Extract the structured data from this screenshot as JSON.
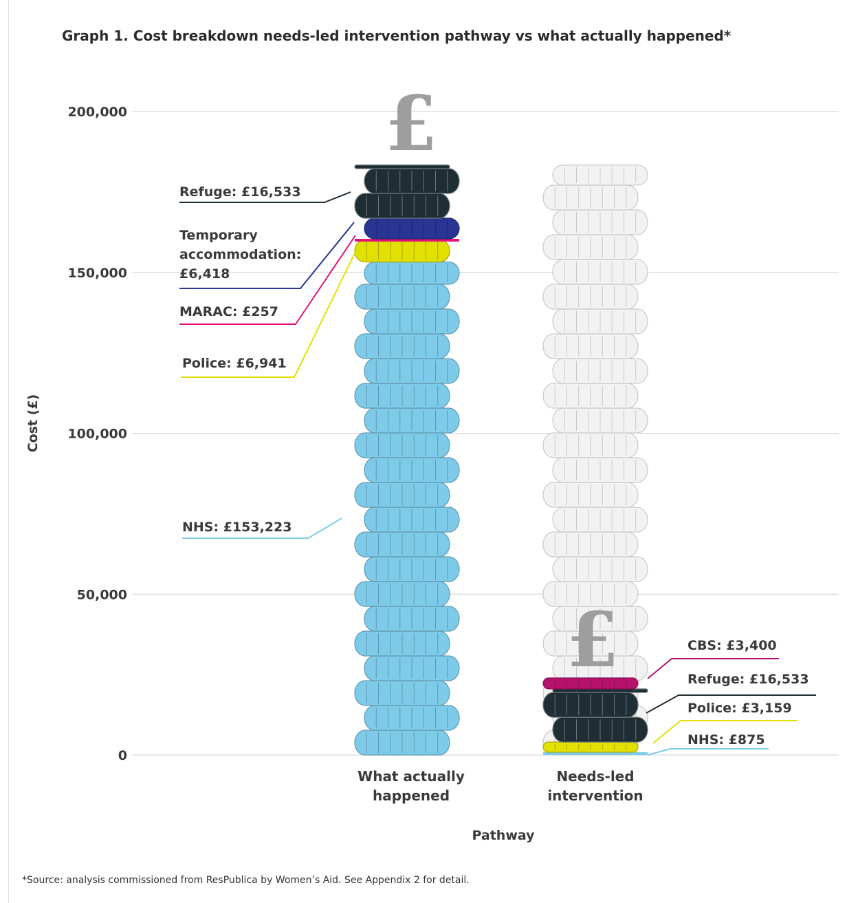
{
  "chart_data": {
    "type": "bar",
    "title": "Graph 1. Cost breakdown needs-led intervention pathway vs what actually happened*",
    "xlabel": "Pathway",
    "ylabel": "Cost (£)",
    "ylim": [
      0,
      200000
    ],
    "yticks": [
      0,
      50000,
      100000,
      150000,
      200000
    ],
    "ytick_labels": [
      "0",
      "50,000",
      "100,000",
      "150,000",
      "200,000"
    ],
    "grid": true,
    "stacked": true,
    "categories": [
      {
        "label_line1": "What actually",
        "label_line2": "happened"
      },
      {
        "label_line1": "Needs-led",
        "label_line2": "intervention"
      }
    ],
    "bars": [
      {
        "segments": [
          {
            "label": "NHS: £153,223",
            "value": 153223,
            "color": "#7ecbe9"
          },
          {
            "label": "Police: £6,941",
            "value": 6941,
            "color": "#e2e000"
          },
          {
            "label": "MARAC: £257",
            "value": 257,
            "color": "#e0117a"
          },
          {
            "label_lines": [
              "Temporary",
              "accommodation:",
              "£6,418"
            ],
            "value": 6418,
            "color": "#283593"
          },
          {
            "label": "Refuge: £16,533",
            "value": 16533,
            "color": "#1f2d34"
          }
        ]
      },
      {
        "segments": [
          {
            "label": "NHS: £875",
            "value": 875,
            "color": "#7ecbe9"
          },
          {
            "label": "Police: £3,159",
            "value": 3159,
            "color": "#e2e000"
          },
          {
            "label": "Refuge: £16,533",
            "value": 16533,
            "color": "#1f2d34"
          },
          {
            "label": "CBS: £3,400",
            "value": 3400,
            "color": "#b5136b"
          }
        ]
      }
    ],
    "ghost_stack_color": "#f2f2f2"
  },
  "footnote": "*Source: analysis commissioned from ResPublica by Women’s Aid. See Appendix 2 for detail.",
  "pound_symbol": "£"
}
